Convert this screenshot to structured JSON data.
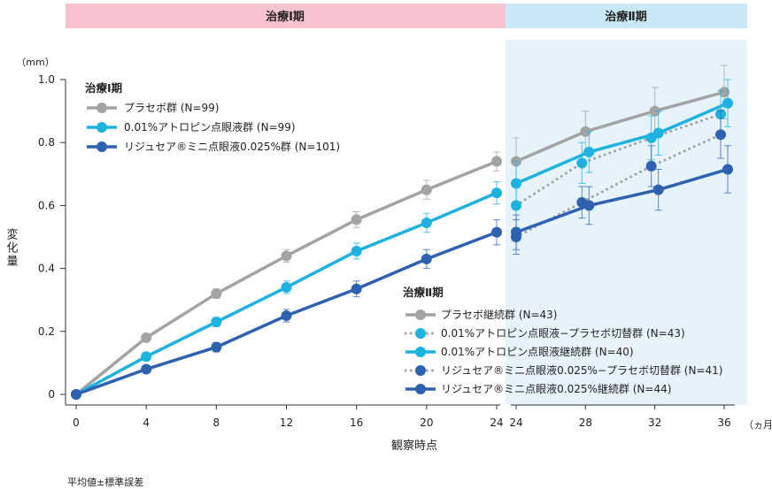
{
  "chart_data": {
    "type": "line",
    "phases": [
      {
        "label": "治療Ⅰ期",
        "color": "#F6C3CF"
      },
      {
        "label": "治療Ⅱ期",
        "color": "#C9E8F5"
      }
    ],
    "shaded_region_color": "#E7F3FB",
    "y_unit": "（mm）",
    "ylabel": "変化量",
    "xlabel": "観察時点",
    "x_unit": "（ヵ月）",
    "ylim": [
      0,
      1.0
    ],
    "yticks": [
      "0",
      "0.2",
      "0.4",
      "0.6",
      "0.8",
      "1.0"
    ],
    "xticks_phase1": [
      "0",
      "4",
      "8",
      "12",
      "16",
      "20",
      "24"
    ],
    "xticks_phase2": [
      "24",
      "28",
      "32",
      "36"
    ],
    "footnote": "平均値±標準誤差",
    "legend1": {
      "title": "治療Ⅰ期",
      "entries": [
        "プラセボ群 (N=99)",
        "0.01%アトロピン点眼液群 (N=99)",
        "リジュセア®ミニ点眼液0.025%群 (N=101)"
      ]
    },
    "legend2": {
      "title": "治療Ⅱ期",
      "entries": [
        "プラセボ継続群 (N=43)",
        "0.01%アトロピン点眼液−プラセボ切替群 (N=43)",
        "0.01%アトロピン点眼液継続群 (N=40)",
        "リジュセア®ミニ点眼液0.025%−プラセボ切替群 (N=41)",
        "リジュセア®ミニ点眼液0.025%継続群 (N=44)"
      ]
    },
    "series_phase1": [
      {
        "color": "#A3A3A3",
        "x": [
          0,
          4,
          8,
          12,
          16,
          20,
          24
        ],
        "y": [
          0.0,
          0.18,
          0.32,
          0.44,
          0.555,
          0.65,
          0.74
        ],
        "err": [
          0.005,
          0.01,
          0.015,
          0.02,
          0.025,
          0.03,
          0.03
        ]
      },
      {
        "color": "#1EB2E0",
        "x": [
          0,
          4,
          8,
          12,
          16,
          20,
          24
        ],
        "y": [
          0.0,
          0.12,
          0.23,
          0.34,
          0.455,
          0.545,
          0.64
        ],
        "err": [
          0.005,
          0.01,
          0.015,
          0.02,
          0.025,
          0.03,
          0.035
        ]
      },
      {
        "color": "#2E62B0",
        "x": [
          0,
          4,
          8,
          12,
          16,
          20,
          24
        ],
        "y": [
          0.0,
          0.08,
          0.15,
          0.25,
          0.335,
          0.43,
          0.515
        ],
        "err": [
          0.005,
          0.01,
          0.015,
          0.02,
          0.025,
          0.03,
          0.04
        ]
      }
    ],
    "series_phase2": [
      {
        "color": "#A3A3A3",
        "dotted": false,
        "x": [
          24,
          28,
          32,
          36
        ],
        "y": [
          0.74,
          0.835,
          0.9,
          0.96
        ],
        "err": [
          0.075,
          0.065,
          0.075,
          0.085
        ]
      },
      {
        "color": "#1EB2E0",
        "dotted": true,
        "x": [
          24,
          28,
          32,
          36
        ],
        "y": [
          0.6,
          0.735,
          0.815,
          0.89
        ],
        "err": [
          0.07,
          0.065,
          0.07,
          0.075
        ]
      },
      {
        "color": "#1EB2E0",
        "dotted": false,
        "x": [
          24,
          28,
          32,
          36
        ],
        "y": [
          0.67,
          0.77,
          0.83,
          0.925
        ],
        "err": [
          0.07,
          0.065,
          0.07,
          0.075
        ]
      },
      {
        "color": "#2E62B0",
        "dotted": true,
        "x": [
          24,
          28,
          32,
          36
        ],
        "y": [
          0.5,
          0.61,
          0.725,
          0.825
        ],
        "err": [
          0.055,
          0.05,
          0.065,
          0.075
        ]
      },
      {
        "color": "#2E62B0",
        "dotted": false,
        "x": [
          24,
          28,
          32,
          36
        ],
        "y": [
          0.515,
          0.6,
          0.65,
          0.715
        ],
        "err": [
          0.055,
          0.06,
          0.065,
          0.075
        ]
      }
    ]
  }
}
